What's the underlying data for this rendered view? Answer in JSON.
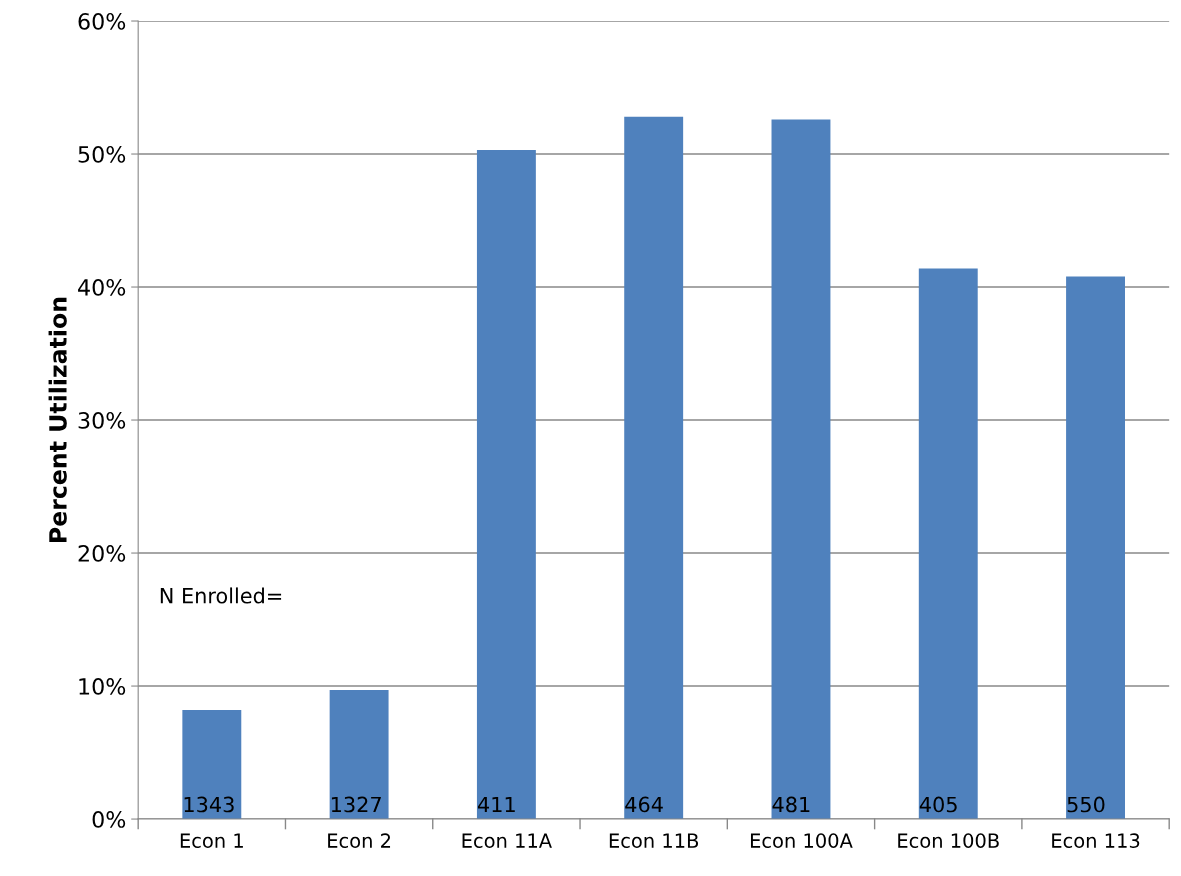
{
  "chart_data": {
    "type": "bar",
    "ylabel": "Percent Utilization",
    "categories": [
      "Econ 1",
      "Econ 2",
      "Econ 11A",
      "Econ 11B",
      "Econ 100A",
      "Econ 100B",
      "Econ 113"
    ],
    "values": [
      8.2,
      9.7,
      50.3,
      52.8,
      52.6,
      41.4,
      40.8
    ],
    "color": "#4f81bd",
    "ylim": [
      0,
      60
    ],
    "yticks": [
      {
        "value": 0,
        "label": "0%"
      },
      {
        "value": 10,
        "label": "10%"
      },
      {
        "value": 20,
        "label": "20%"
      },
      {
        "value": 30,
        "label": "30%"
      },
      {
        "value": 40,
        "label": "40%"
      },
      {
        "value": 50,
        "label": "50%"
      },
      {
        "value": 60,
        "label": "60%"
      }
    ],
    "grid": "y",
    "annotations": [
      "N Enrolled=",
      {
        "text": "1343",
        "x": "Econ 1",
        "y": 0
      },
      {
        "text": "1327",
        "x": "Econ 2",
        "y": 0
      },
      {
        "text": "411",
        "x": "Econ 11A",
        "y": 0
      },
      {
        "text": "464",
        "x": "Econ 11B",
        "y": 0
      },
      {
        "text": "481",
        "x": "Econ 100A",
        "y": 0
      },
      {
        "text": "405",
        "x": "Econ 100B",
        "y": 0
      },
      {
        "text": "550",
        "x": "Econ 113",
        "y": 0
      }
    ]
  }
}
